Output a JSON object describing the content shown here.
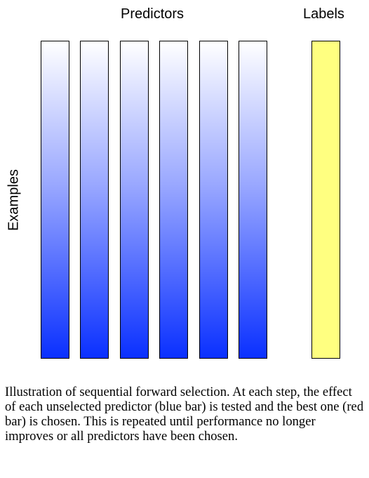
{
  "diagram": {
    "predictors_heading": "Predictors",
    "labels_heading": "Labels",
    "examples_axis_label": "Examples",
    "predictor_bars": [
      {
        "color_top": "#ffffff",
        "color_bottom": "#0a30ff"
      },
      {
        "color_top": "#ffffff",
        "color_bottom": "#0a30ff"
      },
      {
        "color_top": "#ffffff",
        "color_bottom": "#0a30ff"
      },
      {
        "color_top": "#ffffff",
        "color_bottom": "#0a30ff"
      },
      {
        "color_top": "#ffffff",
        "color_bottom": "#0a30ff"
      },
      {
        "color_top": "#ffffff",
        "color_bottom": "#0a30ff"
      }
    ],
    "label_bar_color": "#ffff80"
  },
  "caption": "Illustration of sequential forward selection.  At each step, the effect of each unselected predictor (blue bar) is tested and the best one (red bar) is chosen.  This is repeated until performance no longer improves or all predictors have been chosen."
}
